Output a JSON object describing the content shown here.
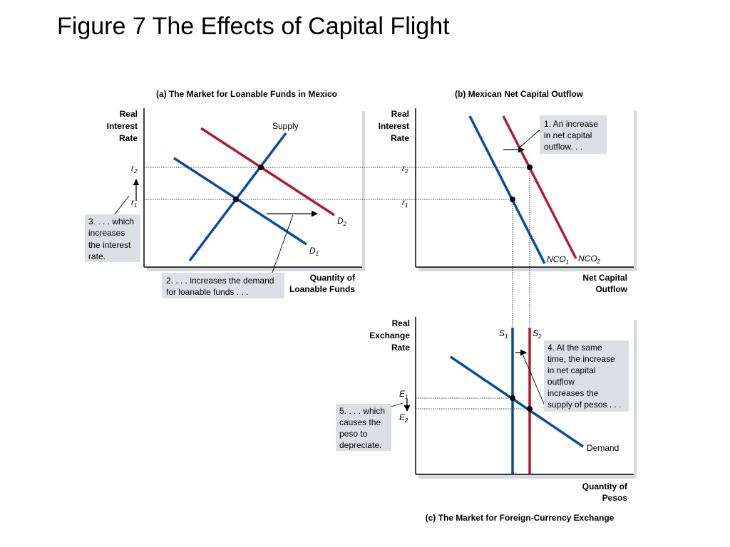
{
  "slide": {
    "title": "Figure 7 The Effects of Capital Flight"
  },
  "panel_a": {
    "title": "(a) The Market for Loanable Funds in Mexico",
    "y_axis_label": [
      "Real",
      "Interest",
      "Rate"
    ],
    "x_axis_label": [
      "Quantity of",
      "Loanable Funds"
    ],
    "supply_label": "Supply",
    "d1": {
      "main": "D",
      "sub": "1"
    },
    "d2": {
      "main": "D",
      "sub": "2"
    },
    "r1": {
      "main": "r",
      "sub": "1"
    },
    "r2": {
      "main": "r",
      "sub": "2"
    },
    "note_demand": [
      "2. . . . increases the demand",
      "for loanable funds . . ."
    ],
    "note_rate": [
      "3. . . . which",
      "increases",
      "the interest",
      "rate."
    ]
  },
  "panel_b": {
    "title": "(b) Mexican Net Capital Outflow",
    "y_axis_label": [
      "Real",
      "Interest",
      "Rate"
    ],
    "x_axis_label": [
      "Net Capital",
      "Outflow"
    ],
    "r1": {
      "main": "r",
      "sub": "1"
    },
    "r2": {
      "main": "r",
      "sub": "2"
    },
    "nco1": {
      "main": "NCO",
      "sub": "1"
    },
    "nco2": {
      "main": "NCO",
      "sub": "2"
    },
    "note_increase": [
      "1. An increase",
      "in net capital",
      "outflow. . ."
    ]
  },
  "panel_c": {
    "title": "(c) The Market for Foreign-Currency Exchange",
    "y_axis_label": [
      "Real",
      "Exchange",
      "Rate"
    ],
    "x_axis_label": [
      "Quantity of",
      "Pesos"
    ],
    "s1": {
      "main": "S",
      "sub": "1"
    },
    "s2": {
      "main": "S",
      "sub": "2"
    },
    "e1": {
      "main": "E",
      "sub": "1"
    },
    "e2": {
      "main": "E",
      "sub": "2"
    },
    "demand_label": "Demand",
    "note_supply": [
      "4. At the same",
      "time, the increase",
      "in net capital",
      "outflow",
      "increases the",
      "supply of pesos . . ."
    ],
    "note_peso": [
      "5. . . . which",
      "causes the",
      "peso to",
      "depreciate."
    ]
  },
  "colors": {
    "blue": "#0b4a9c",
    "red": "#b01c2e",
    "note_bg": "#dcdfe4",
    "axis": "#000000"
  }
}
